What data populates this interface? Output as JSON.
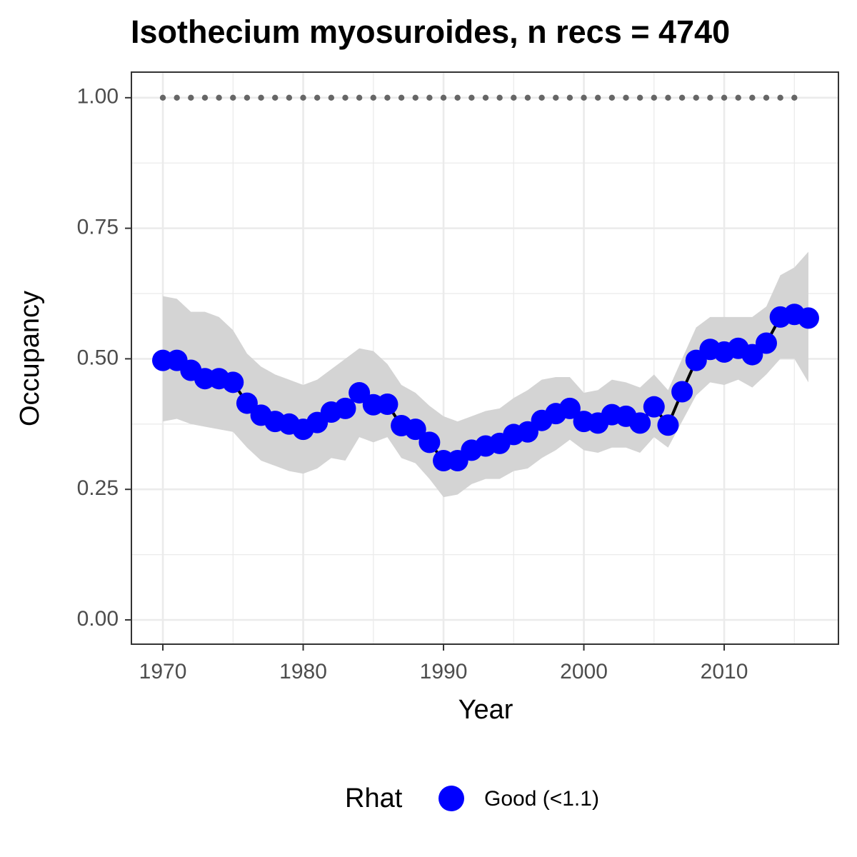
{
  "chart_data": {
    "type": "line",
    "title": "Isothecium myosuroides, n recs = 4740",
    "x_label": "Year",
    "y_label": "Occupancy",
    "x": [
      1970,
      1971,
      1972,
      1973,
      1974,
      1975,
      1976,
      1977,
      1978,
      1979,
      1980,
      1981,
      1982,
      1983,
      1984,
      1985,
      1986,
      1987,
      1988,
      1989,
      1990,
      1991,
      1992,
      1993,
      1994,
      1995,
      1996,
      1997,
      1998,
      1999,
      2000,
      2001,
      2002,
      2003,
      2004,
      2005,
      2006,
      2007,
      2008,
      2009,
      2010,
      2011,
      2012,
      2013,
      2014,
      2015,
      2016
    ],
    "series": [
      {
        "name": "Good (<1.1)",
        "color": "#0000ff",
        "values": [
          0.497,
          0.497,
          0.478,
          0.462,
          0.462,
          0.455,
          0.415,
          0.392,
          0.38,
          0.375,
          0.365,
          0.378,
          0.398,
          0.405,
          0.435,
          0.412,
          0.413,
          0.372,
          0.365,
          0.34,
          0.305,
          0.305,
          0.325,
          0.333,
          0.338,
          0.355,
          0.36,
          0.382,
          0.395,
          0.405,
          0.38,
          0.377,
          0.393,
          0.39,
          0.377,
          0.408,
          0.373,
          0.437,
          0.497,
          0.518,
          0.513,
          0.52,
          0.508,
          0.53,
          0.58,
          0.585,
          0.578
        ],
        "upper": [
          0.62,
          0.615,
          0.59,
          0.59,
          0.58,
          0.555,
          0.51,
          0.485,
          0.47,
          0.46,
          0.45,
          0.46,
          0.48,
          0.5,
          0.52,
          0.515,
          0.49,
          0.45,
          0.435,
          0.41,
          0.39,
          0.38,
          0.39,
          0.4,
          0.405,
          0.425,
          0.44,
          0.46,
          0.465,
          0.465,
          0.435,
          0.44,
          0.46,
          0.455,
          0.445,
          0.47,
          0.44,
          0.5,
          0.56,
          0.58,
          0.58,
          0.58,
          0.58,
          0.6,
          0.66,
          0.675,
          0.705
        ],
        "lower": [
          0.38,
          0.385,
          0.375,
          0.37,
          0.365,
          0.36,
          0.33,
          0.305,
          0.295,
          0.285,
          0.28,
          0.29,
          0.31,
          0.305,
          0.35,
          0.34,
          0.35,
          0.31,
          0.3,
          0.27,
          0.235,
          0.24,
          0.26,
          0.27,
          0.27,
          0.285,
          0.29,
          0.31,
          0.325,
          0.345,
          0.325,
          0.32,
          0.33,
          0.33,
          0.32,
          0.35,
          0.33,
          0.38,
          0.43,
          0.455,
          0.45,
          0.46,
          0.445,
          0.47,
          0.5,
          0.5,
          0.455
        ]
      }
    ],
    "line_color": "#000000",
    "band_color": "#d4d4d4",
    "reference": {
      "x": [
        1970,
        1971,
        1972,
        1973,
        1974,
        1975,
        1976,
        1977,
        1978,
        1979,
        1980,
        1981,
        1982,
        1983,
        1984,
        1985,
        1986,
        1987,
        1988,
        1989,
        1990,
        1991,
        1992,
        1993,
        1994,
        1995,
        1996,
        1997,
        1998,
        1999,
        2000,
        2001,
        2002,
        2003,
        2004,
        2005,
        2006,
        2007,
        2008,
        2009,
        2010,
        2011,
        2012,
        2013,
        2014,
        2015
      ],
      "values": [
        1,
        1,
        1,
        1,
        1,
        1,
        1,
        1,
        1,
        1,
        1,
        1,
        1,
        1,
        1,
        1,
        1,
        1,
        1,
        1,
        1,
        1,
        1,
        1,
        1,
        1,
        1,
        1,
        1,
        1,
        1,
        1,
        1,
        1,
        1,
        1,
        1,
        1,
        1,
        1,
        1,
        1,
        1,
        1,
        1,
        1
      ],
      "color": "#666666"
    },
    "xlim": [
      1967.76,
      2018.14
    ],
    "xticks": [
      1970,
      1980,
      1990,
      2000,
      2010
    ],
    "xminor": [
      1975,
      1985,
      1995,
      2005,
      2015
    ],
    "ylim": [
      -0.0465,
      1.049
    ],
    "yticks": [
      {
        "value": 0,
        "label": "0.00"
      },
      {
        "value": 0.25,
        "label": "0.25"
      },
      {
        "value": 0.5,
        "label": "0.50"
      },
      {
        "value": 0.75,
        "label": "0.75"
      },
      {
        "value": 1,
        "label": "1.00"
      }
    ],
    "yminor": [
      0.125,
      0.375,
      0.625,
      0.875
    ],
    "grid": true,
    "legend": {
      "title": "Rhat",
      "position": "bottom"
    }
  }
}
